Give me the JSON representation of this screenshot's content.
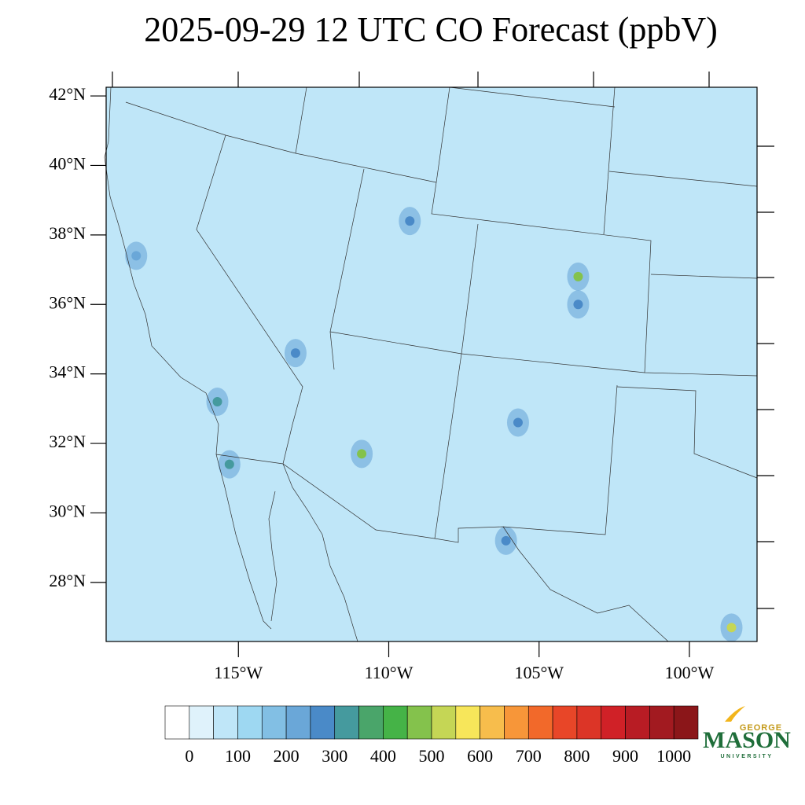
{
  "chart_data": {
    "type": "map",
    "title": "2025-09-29 12 UTC CO Forecast (ppbV)",
    "xlim": [
      -119.4,
      -97.75
    ],
    "ylim": [
      26.3,
      42.25
    ],
    "xticks": [
      {
        "value": -115,
        "label": "115°W"
      },
      {
        "value": -110,
        "label": "110°W"
      },
      {
        "value": -105,
        "label": "105°W"
      },
      {
        "value": -100,
        "label": "100°W"
      }
    ],
    "yticks": [
      {
        "value": 28,
        "label": "28°N"
      },
      {
        "value": 30,
        "label": "30°N"
      },
      {
        "value": 32,
        "label": "32°N"
      },
      {
        "value": 34,
        "label": "34°N"
      },
      {
        "value": 36,
        "label": "36°N"
      },
      {
        "value": 38,
        "label": "38°N"
      },
      {
        "value": 40,
        "label": "40°N"
      },
      {
        "value": 42,
        "label": "42°N"
      }
    ],
    "background_color": "#bfe6f8",
    "colorbar": {
      "levels": [
        0,
        50,
        100,
        150,
        200,
        250,
        300,
        350,
        400,
        450,
        500,
        550,
        600,
        650,
        700,
        750,
        800,
        850,
        900,
        950,
        1000
      ],
      "colors": [
        "#ffffff",
        "#dff2fb",
        "#bfe6f8",
        "#9ed8f2",
        "#82bfe4",
        "#6aa7d8",
        "#4a8ac8",
        "#459a9e",
        "#4aa56a",
        "#45b347",
        "#84c24c",
        "#c5d655",
        "#f7e65a",
        "#f7bd4c",
        "#f79639",
        "#f2692a",
        "#e84628",
        "#dc3527",
        "#d02127",
        "#b81c24",
        "#a21a20",
        "#8b1619"
      ],
      "ticks": [
        0,
        100,
        200,
        300,
        400,
        500,
        600,
        700,
        800,
        900,
        1000
      ]
    },
    "hotspots": [
      {
        "lon": -103.7,
        "lat": 36.8,
        "value": 450
      },
      {
        "lon": -103.7,
        "lat": 36.0,
        "value": 250
      },
      {
        "lon": -110.9,
        "lat": 31.7,
        "value": 450
      },
      {
        "lon": -115.7,
        "lat": 33.2,
        "value": 300
      },
      {
        "lon": -115.3,
        "lat": 31.4,
        "value": 300
      },
      {
        "lon": -109.3,
        "lat": 38.4,
        "value": 250
      },
      {
        "lon": -113.1,
        "lat": 34.6,
        "value": 250
      },
      {
        "lon": -105.7,
        "lat": 32.6,
        "value": 250
      },
      {
        "lon": -106.1,
        "lat": 29.2,
        "value": 250
      },
      {
        "lon": -98.6,
        "lat": 26.7,
        "value": 500
      },
      {
        "lon": -118.4,
        "lat": 37.4,
        "value": 200
      }
    ]
  },
  "logo": {
    "top": "GEORGE",
    "name": "MASON",
    "bottom": "UNIVERSITY"
  }
}
